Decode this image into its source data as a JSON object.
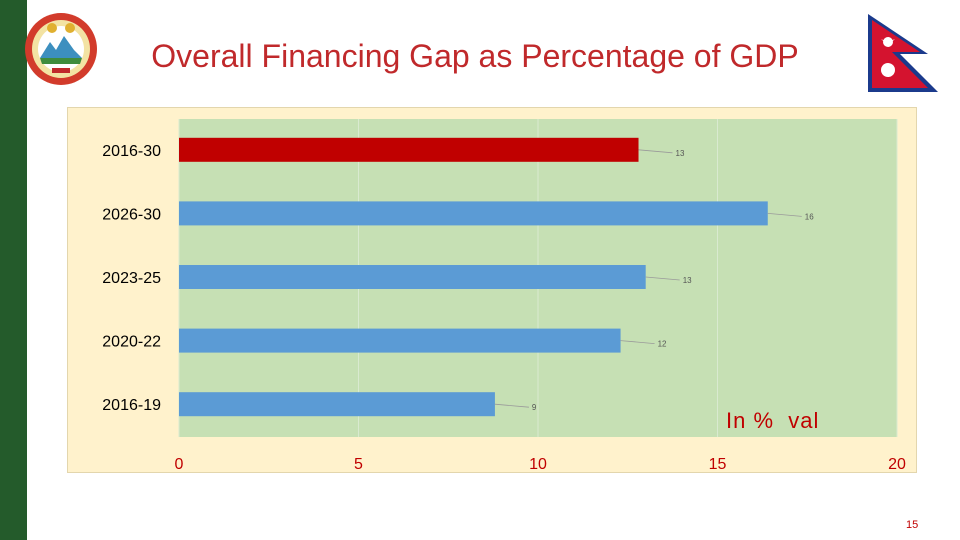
{
  "slide": {
    "title": "Overall Financing Gap as Percentage of GDP",
    "unit_note": "In %  val",
    "page_number": "15"
  },
  "colors": {
    "sidebar": "#245b2b",
    "title": "#c0292b",
    "chart_background": "#fff2cc",
    "plot_background": "#c6e0b4",
    "highlight_bar": "#c00000",
    "bar": "#5b9bd5",
    "tick_text": "#c00000"
  },
  "chart_data": {
    "type": "bar",
    "orientation": "horizontal",
    "title": "",
    "xlabel": "",
    "ylabel": "",
    "categories": [
      "2016-30",
      "2026-30",
      "2023-25",
      "2020-22",
      "2016-19"
    ],
    "values": [
      12.8,
      16.4,
      13.0,
      12.3,
      8.8
    ],
    "data_labels": [
      "13",
      "16",
      "13",
      "12",
      "9"
    ],
    "highlight_index": 0,
    "xlim": [
      0,
      20
    ],
    "xticks": [
      "0",
      "5",
      "10",
      "15",
      "20"
    ],
    "grid": true,
    "legend": "none"
  }
}
